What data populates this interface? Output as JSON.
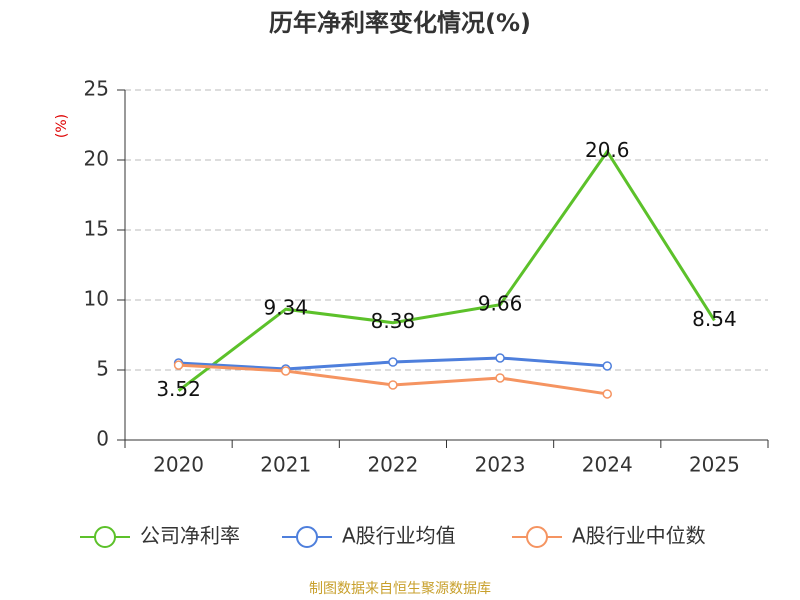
{
  "chart_data": {
    "type": "line",
    "title": "历年净利率变化情况(%)",
    "ylabel": "(%)",
    "source": "制图数据来自恒生聚源数据库",
    "categories": [
      "2020",
      "2021",
      "2022",
      "2023",
      "2024",
      "2025"
    ],
    "series": [
      {
        "name": "公司净利率",
        "color": "#5cc12a",
        "markers": false,
        "labels": true,
        "values": [
          3.52,
          9.34,
          8.38,
          9.66,
          20.6,
          8.54
        ]
      },
      {
        "name": "A股行业均值",
        "color": "#4e7fdc",
        "markers": true,
        "labels": false,
        "values": [
          5.5,
          5.07,
          5.57,
          5.86,
          5.29,
          null
        ]
      },
      {
        "name": "A股行业中位数",
        "color": "#f59461",
        "markers": true,
        "labels": false,
        "values": [
          5.35,
          4.93,
          3.93,
          4.43,
          3.29,
          null
        ]
      }
    ],
    "ylim": [
      0,
      25
    ],
    "yticks": [
      0,
      5,
      10,
      15,
      20,
      25
    ],
    "grid": true
  }
}
